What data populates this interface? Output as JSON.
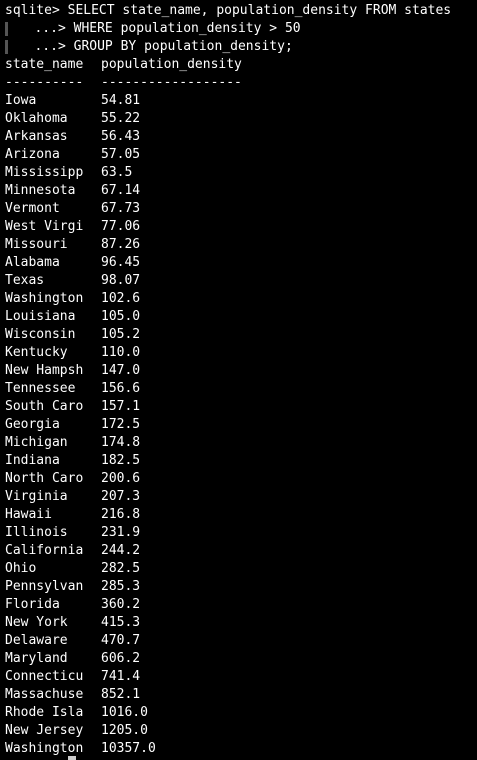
{
  "terminal": {
    "command_lines": [
      {
        "prompt": "sqlite> ",
        "text": "SELECT state_name, population_density FROM states"
      },
      {
        "prompt": "   ...> ",
        "text": "WHERE population_density > 50"
      },
      {
        "prompt": "   ...> ",
        "text": "GROUP BY population_density;"
      }
    ],
    "header": {
      "col1": "state_name",
      "col2": "population_density"
    },
    "separator": {
      "col1": "----------",
      "col2": "------------------"
    },
    "rows": [
      {
        "state": "Iowa",
        "density": "54.81"
      },
      {
        "state": "Oklahoma",
        "density": "55.22"
      },
      {
        "state": "Arkansas",
        "density": "56.43"
      },
      {
        "state": "Arizona",
        "density": "57.05"
      },
      {
        "state": "Mississipp",
        "density": "63.5"
      },
      {
        "state": "Minnesota",
        "density": "67.14"
      },
      {
        "state": "Vermont",
        "density": "67.73"
      },
      {
        "state": "West Virgi",
        "density": "77.06"
      },
      {
        "state": "Missouri",
        "density": "87.26"
      },
      {
        "state": "Alabama",
        "density": "96.45"
      },
      {
        "state": "Texas",
        "density": "98.07"
      },
      {
        "state": "Washington",
        "density": "102.6"
      },
      {
        "state": "Louisiana",
        "density": "105.0"
      },
      {
        "state": "Wisconsin",
        "density": "105.2"
      },
      {
        "state": "Kentucky",
        "density": "110.0"
      },
      {
        "state": "New Hampsh",
        "density": "147.0"
      },
      {
        "state": "Tennessee",
        "density": "156.6"
      },
      {
        "state": "South Caro",
        "density": "157.1"
      },
      {
        "state": "Georgia",
        "density": "172.5"
      },
      {
        "state": "Michigan",
        "density": "174.8"
      },
      {
        "state": "Indiana",
        "density": "182.5"
      },
      {
        "state": "North Caro",
        "density": "200.6"
      },
      {
        "state": "Virginia",
        "density": "207.3"
      },
      {
        "state": "Hawaii",
        "density": "216.8"
      },
      {
        "state": "Illinois",
        "density": "231.9"
      },
      {
        "state": "California",
        "density": "244.2"
      },
      {
        "state": "Ohio",
        "density": "282.5"
      },
      {
        "state": "Pennsylvan",
        "density": "285.3"
      },
      {
        "state": "Florida",
        "density": "360.2"
      },
      {
        "state": "New York",
        "density": "415.3"
      },
      {
        "state": "Delaware",
        "density": "470.7"
      },
      {
        "state": "Maryland",
        "density": "606.2"
      },
      {
        "state": "Connecticu",
        "density": "741.4"
      },
      {
        "state": "Massachuse",
        "density": "852.1"
      },
      {
        "state": "Rhode Isla",
        "density": "1016.0"
      },
      {
        "state": "New Jersey",
        "density": "1205.0"
      },
      {
        "state": "Washington",
        "density": "10357.0"
      }
    ]
  }
}
